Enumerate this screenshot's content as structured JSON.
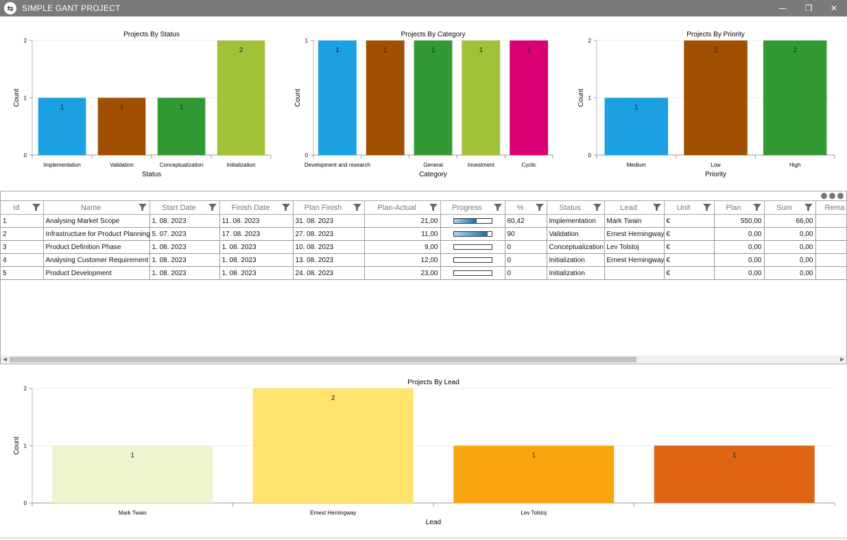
{
  "window": {
    "title": "SIMPLE GANT PROJECT",
    "logo_icon": "swap-arrows-icon",
    "minimize": "—",
    "restore": "❐",
    "close": "✕"
  },
  "charts": [
    {
      "id": "status",
      "type": "bar",
      "title": "Projects By Status",
      "xlabel": "Status",
      "ylabel": "Count",
      "ylim": [
        0,
        2
      ],
      "yticks": [
        0,
        1,
        2
      ],
      "categories": [
        "Implementation",
        "Validation",
        "Conceptualization",
        "Initialization"
      ],
      "values": [
        1,
        1,
        1,
        2
      ],
      "colors": [
        "#1BA1E2",
        "#A05000",
        "#339933",
        "#A2C139"
      ]
    },
    {
      "id": "category",
      "type": "bar",
      "title": "Projects By Category",
      "xlabel": "Category",
      "ylabel": "Count",
      "ylim": [
        0,
        1
      ],
      "yticks": [
        0,
        1
      ],
      "categories": [
        "Development and research",
        "",
        "General",
        "Investment",
        "Cyclic"
      ],
      "values": [
        1,
        1,
        1,
        1,
        1
      ],
      "colors": [
        "#1BA1E2",
        "#A05000",
        "#339933",
        "#A2C139",
        "#D80073"
      ]
    },
    {
      "id": "priority",
      "type": "bar",
      "title": "Projects By Priority",
      "xlabel": "Priority",
      "ylabel": "Count",
      "ylim": [
        0,
        2
      ],
      "yticks": [
        0,
        1,
        2
      ],
      "categories": [
        "Medium",
        "Low",
        "High"
      ],
      "values": [
        1,
        2,
        2
      ],
      "colors": [
        "#1BA1E2",
        "#A05000",
        "#339933"
      ]
    },
    {
      "id": "lead",
      "type": "bar",
      "title": "Projects By Lead",
      "xlabel": "Lead",
      "ylabel": "Count",
      "ylim": [
        0,
        2
      ],
      "yticks": [
        0,
        1,
        2
      ],
      "categories": [
        "Mark Twain",
        "Ernest Hemingway",
        "Lev Tolstoj",
        ""
      ],
      "values": [
        1,
        2,
        1,
        1
      ],
      "colors": [
        "#EEF2CD",
        "#FFE36B",
        "#FAA50F",
        "#DE6312"
      ]
    }
  ],
  "table": {
    "columns": [
      "Id",
      "Name",
      "Start Date",
      "Finish Date",
      "Plan Finish",
      "Plan-Actual",
      "Progress",
      "%",
      "Status",
      "Lead",
      "Unit",
      "Plan",
      "Sum",
      "Rema"
    ],
    "rows": [
      {
        "id": "1",
        "name": "Analysing Market Scope",
        "start": "1. 08. 2023",
        "finish": "11. 08. 2023",
        "plan_finish": "31. 08. 2023",
        "plan_actual": "21,00",
        "progress": 60.42,
        "pct": "60,42",
        "status": "Implementation",
        "lead": "Mark Twain",
        "unit": "€",
        "plan": "550,00",
        "sum": "66,00"
      },
      {
        "id": "2",
        "name": "Infrastructure for Product Planning",
        "start": "5. 07. 2023",
        "finish": "17. 08. 2023",
        "plan_finish": "27. 08. 2023",
        "plan_actual": "11,00",
        "progress": 90,
        "pct": "90",
        "status": "Validation",
        "lead": "Ernest Hemingway",
        "unit": "€",
        "plan": "0,00",
        "sum": "0,00"
      },
      {
        "id": "3",
        "name": "Product Definition Phase",
        "start": "1. 08. 2023",
        "finish": "1. 08. 2023",
        "plan_finish": "10. 08. 2023",
        "plan_actual": "9,00",
        "progress": 0,
        "pct": "0",
        "status": "Conceptualization",
        "lead": "Lev Tolstoj",
        "unit": "€",
        "plan": "0,00",
        "sum": "0,00"
      },
      {
        "id": "4",
        "name": "Analysing Customer Requirement",
        "start": "1. 08. 2023",
        "finish": "1. 08. 2023",
        "plan_finish": "13. 08. 2023",
        "plan_actual": "12,00",
        "progress": 0,
        "pct": "0",
        "status": "Initialization",
        "lead": "Ernest Hemingway",
        "unit": "€",
        "plan": "0,00",
        "sum": "0,00"
      },
      {
        "id": "5",
        "name": "Product Development",
        "start": "1. 08. 2023",
        "finish": "1. 08. 2023",
        "plan_finish": "24. 08. 2023",
        "plan_actual": "23,00",
        "progress": 0,
        "pct": "0",
        "status": "Initialization",
        "lead": "",
        "unit": "€",
        "plan": "0,00",
        "sum": "0,00"
      }
    ]
  }
}
